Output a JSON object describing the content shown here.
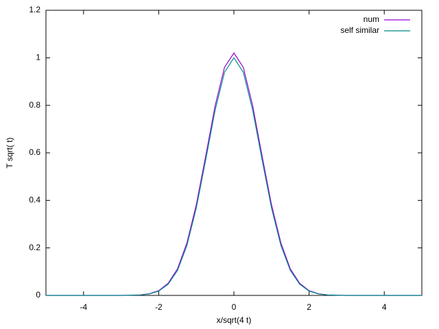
{
  "chart_data": {
    "type": "line",
    "xlabel": "x/sqrt(4 t)",
    "ylabel": "T sqrt( t)",
    "x": [
      -5,
      -4.75,
      -4.5,
      -4.25,
      -4,
      -3.75,
      -3.5,
      -3.25,
      -3,
      -2.75,
      -2.5,
      -2.25,
      -2,
      -1.75,
      -1.5,
      -1.25,
      -1,
      -0.75,
      -0.5,
      -0.25,
      0,
      0.25,
      0.5,
      0.75,
      1,
      1.25,
      1.5,
      1.75,
      2,
      2.25,
      2.5,
      2.75,
      3,
      3.25,
      3.5,
      3.75,
      4,
      4.25,
      4.5,
      4.75,
      5
    ],
    "series": [
      {
        "name": "num",
        "color": "#9400d3",
        "values": [
          0,
          0,
          0,
          0,
          0,
          0,
          0,
          0,
          0,
          0.001,
          0.002,
          0.007,
          0.02,
          0.051,
          0.112,
          0.221,
          0.382,
          0.587,
          0.798,
          0.96,
          1.02,
          0.96,
          0.798,
          0.587,
          0.382,
          0.221,
          0.112,
          0.051,
          0.02,
          0.007,
          0.002,
          0.001,
          0,
          0,
          0,
          0,
          0,
          0,
          0,
          0,
          0
        ]
      },
      {
        "name": "self similar",
        "color": "#008b8b",
        "values": [
          0,
          0,
          0,
          0,
          0,
          0,
          0,
          0,
          0,
          0.001,
          0.002,
          0.006,
          0.018,
          0.047,
          0.105,
          0.21,
          0.368,
          0.57,
          0.779,
          0.939,
          1,
          0.939,
          0.779,
          0.57,
          0.368,
          0.21,
          0.105,
          0.047,
          0.018,
          0.006,
          0.002,
          0.001,
          0,
          0,
          0,
          0,
          0,
          0,
          0,
          0,
          0
        ]
      }
    ],
    "xlim": [
      -5,
      5
    ],
    "xticks": [
      -4,
      -2,
      0,
      2,
      4
    ],
    "ylim": [
      0,
      1.2
    ],
    "yticks": [
      0,
      0.2,
      0.4,
      0.6,
      0.8,
      1,
      1.2
    ],
    "legend": "top-right",
    "grid": false
  }
}
